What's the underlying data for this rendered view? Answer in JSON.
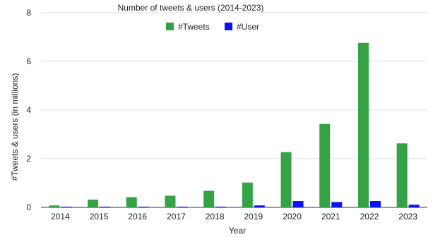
{
  "chart_data": {
    "type": "bar",
    "title": "Number of tweets & users (2014-2023)",
    "xlabel": "Year",
    "ylabel": "#Tweets  & users (in millions)",
    "categories": [
      "2014",
      "2015",
      "2016",
      "2017",
      "2018",
      "2019",
      "2020",
      "2021",
      "2022",
      "2023"
    ],
    "series": [
      {
        "name": "#Tweets",
        "color": "#34a245",
        "values": [
          0.08,
          0.32,
          0.42,
          0.48,
          0.68,
          1.02,
          2.27,
          3.43,
          6.76,
          2.63
        ]
      },
      {
        "name": "#User",
        "color": "#0a14f0",
        "values": [
          0.005,
          0.02,
          0.02,
          0.02,
          0.03,
          0.08,
          0.26,
          0.22,
          0.26,
          0.11
        ]
      }
    ],
    "yticks": [
      0,
      2,
      4,
      6,
      8
    ],
    "ylim": [
      0,
      8
    ],
    "grid": true,
    "legend_position": "top-center"
  }
}
